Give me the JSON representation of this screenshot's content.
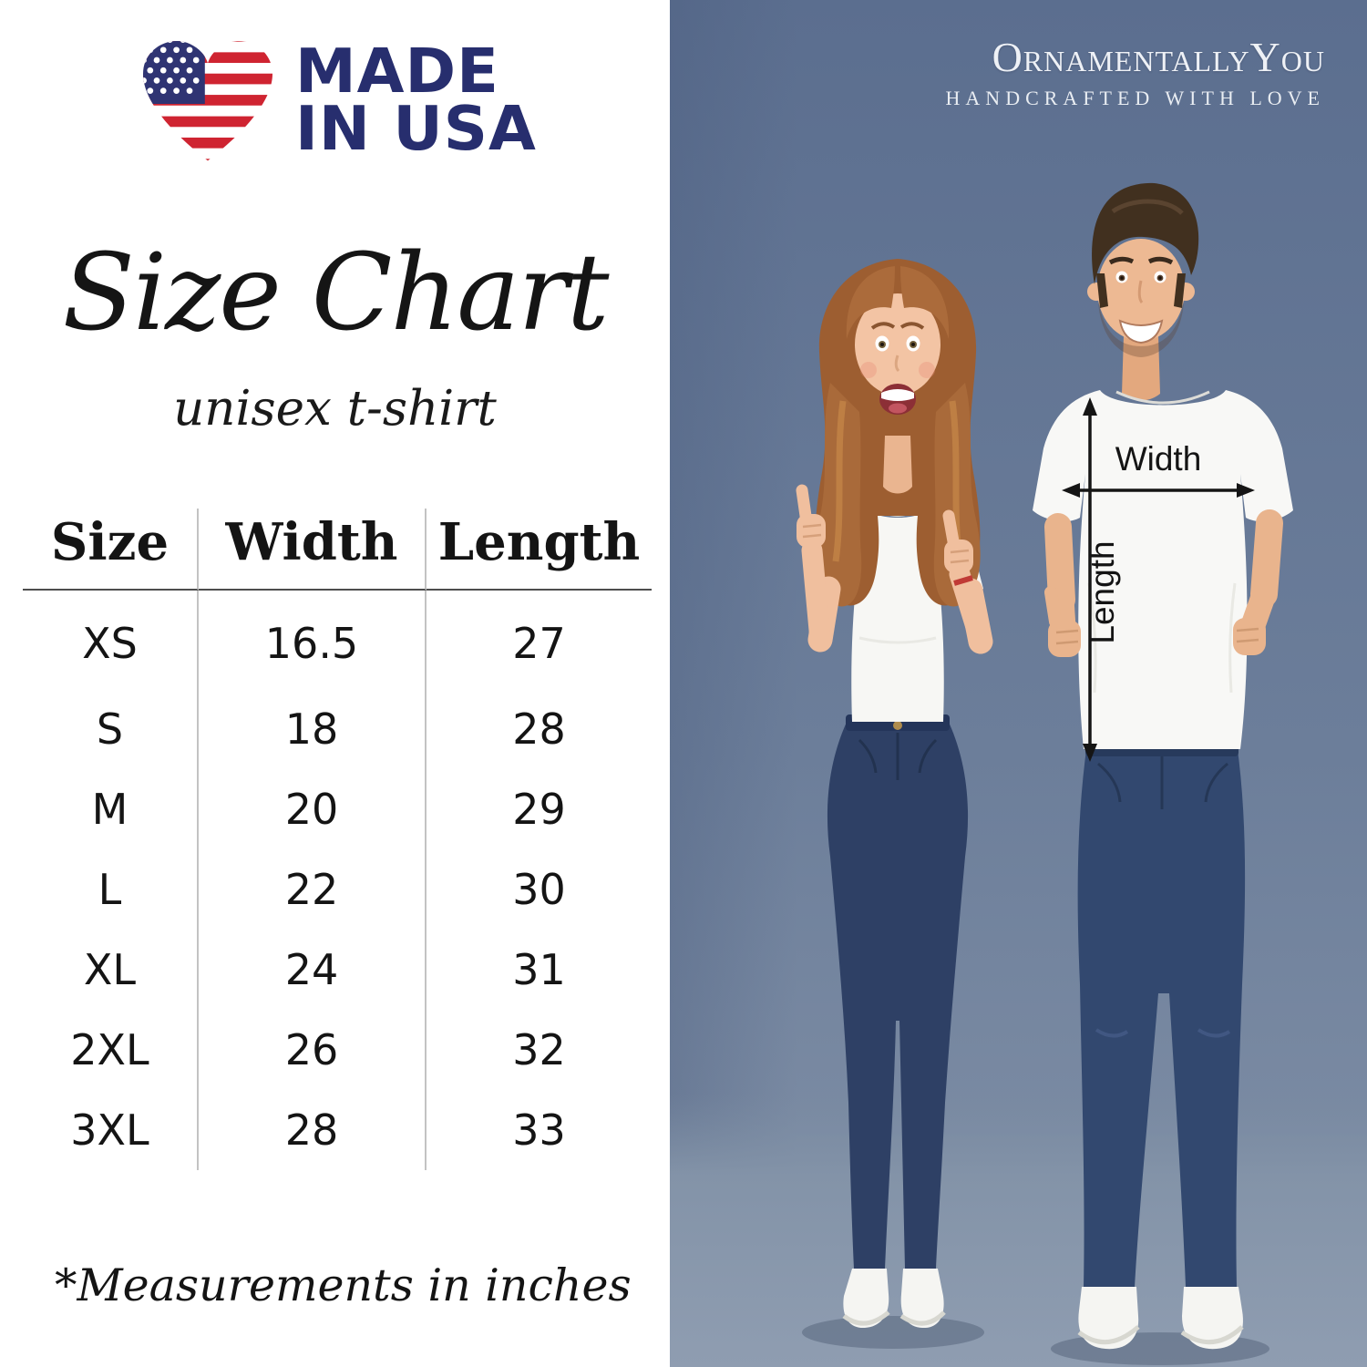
{
  "badge": {
    "line1": "MADE",
    "line2": "IN USA"
  },
  "title": "Size Chart",
  "subtitle": "unisex t-shirt",
  "table": {
    "headers": [
      "Size",
      "Width",
      "Length"
    ],
    "rows": [
      [
        "XS",
        "16.5",
        "27"
      ],
      [
        "S",
        "18",
        "28"
      ],
      [
        "M",
        "20",
        "29"
      ],
      [
        "L",
        "22",
        "30"
      ],
      [
        "XL",
        "24",
        "31"
      ],
      [
        "2XL",
        "26",
        "32"
      ],
      [
        "3XL",
        "28",
        "33"
      ]
    ],
    "units_note": "*Measurements in inches"
  },
  "brand": {
    "name": "OrnamentallyYou",
    "tagline": "HANDCRAFTED WITH LOVE"
  },
  "photo": {
    "width_label": "Width",
    "length_label": "Length"
  },
  "colors": {
    "brand_navy": "#272e6e",
    "flag_red": "#cf2431",
    "flag_blue": "#2f3473",
    "photo_background": "#667997",
    "text": "#141414"
  }
}
